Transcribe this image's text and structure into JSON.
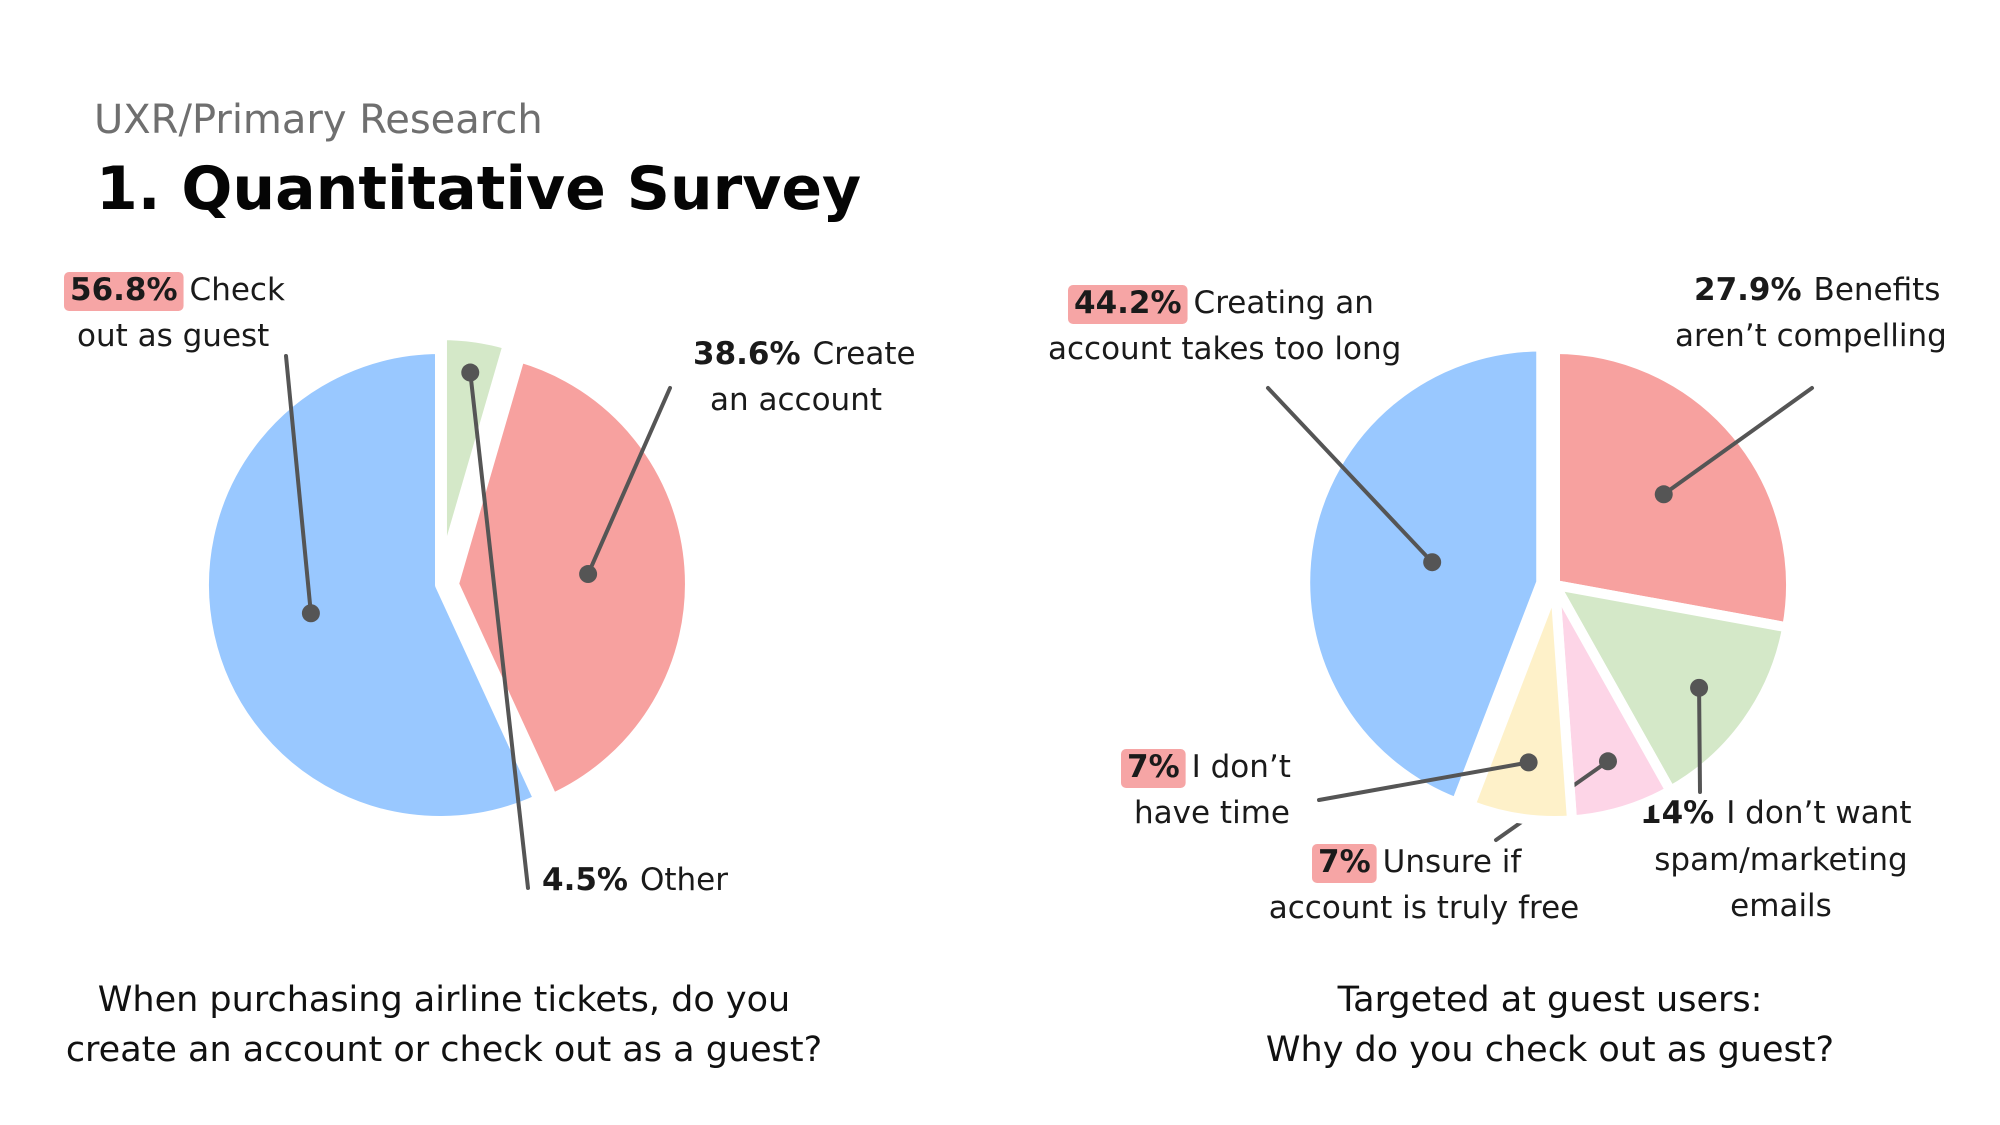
{
  "header": {
    "eyebrow": "UXR/Primary Research",
    "title": "1. Quantitative Survey"
  },
  "colors": {
    "blue": "#99C8FF",
    "red": "#F7A19F",
    "green": "#D4E8C8",
    "yellow": "#FEF1C9",
    "pink": "#FDD5E7",
    "highlight": "#F6A5A5",
    "leader": "#555555"
  },
  "chart_data": [
    {
      "type": "pie",
      "title": "",
      "question_lines": [
        "When purchasing airline tickets, do you",
        "create an account or check out as a guest?"
      ],
      "slices": [
        {
          "name": "check-out-as-guest",
          "percent_label": "56.8%",
          "value": 56.8,
          "label_lines": [
            "Check",
            "out as guest"
          ],
          "color": "#99C8FF",
          "highlight": true,
          "exploded": false
        },
        {
          "name": "create-an-account",
          "percent_label": "38.6%",
          "value": 38.6,
          "label_lines": [
            "Create",
            "an account"
          ],
          "color": "#F7A19F",
          "highlight": false,
          "exploded": true
        },
        {
          "name": "other",
          "percent_label": "4.5%",
          "value": 4.5,
          "label_lines": [
            "Other"
          ],
          "color": "#D4E8C8",
          "highlight": false,
          "exploded": true
        }
      ]
    },
    {
      "type": "pie",
      "title": "",
      "question_lines": [
        "Targeted at guest users:",
        "Why do you check out as guest?"
      ],
      "slices": [
        {
          "name": "creating-account-takes-too-long",
          "percent_label": "44.2%",
          "value": 44.2,
          "label_lines": [
            "Creating an",
            "account takes too long"
          ],
          "color": "#99C8FF",
          "highlight": true,
          "exploded": true
        },
        {
          "name": "benefits-arent-compelling",
          "percent_label": "27.9%",
          "value": 27.9,
          "label_lines": [
            "Benefits",
            "aren’t compelling"
          ],
          "color": "#F7A19F",
          "highlight": false,
          "exploded": false
        },
        {
          "name": "dont-want-spam",
          "percent_label": "14%",
          "value": 14,
          "label_lines": [
            "I don’t want",
            "spam/marketing",
            "emails"
          ],
          "color": "#D4E8C8",
          "highlight": false,
          "exploded": false
        },
        {
          "name": "unsure-account-truly-free",
          "percent_label": "7%",
          "value": 7,
          "label_lines": [
            "Unsure if",
            "account is truly free"
          ],
          "color": "#FDD5E7",
          "highlight": true,
          "exploded": false
        },
        {
          "name": "dont-have-time",
          "percent_label": "7%",
          "value": 7,
          "label_lines": [
            "I don’t",
            "have time"
          ],
          "color": "#FEF1C9",
          "highlight": true,
          "exploded": false
        }
      ]
    }
  ]
}
